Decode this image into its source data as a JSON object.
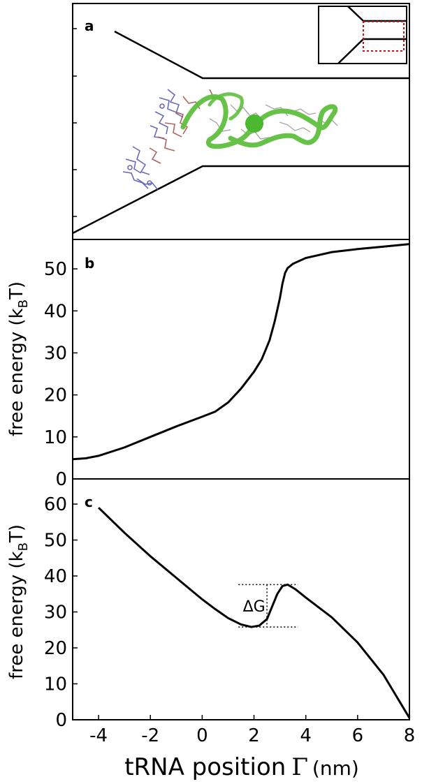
{
  "chart_data": [
    {
      "panel": "a",
      "type": "other",
      "title": "",
      "xlim": [
        -5,
        8
      ],
      "ylim": [
        0,
        7
      ]
    },
    {
      "panel": "b",
      "type": "line",
      "xlabel": "",
      "ylabel": "free energy (k_BT)",
      "ylabel_parts": {
        "pre": "free energy (k",
        "sub": "B",
        "post": "T)"
      },
      "xlim": [
        -5,
        8
      ],
      "ylim": [
        0,
        57
      ],
      "yticks": [
        0,
        10,
        20,
        30,
        40,
        50
      ],
      "series": [
        {
          "x": [
            -5,
            -4.5,
            -4,
            -3,
            -2,
            -1,
            0,
            0.5,
            1,
            1.5,
            2,
            2.3,
            2.6,
            2.8,
            3.0,
            3.1,
            3.2,
            3.3,
            3.5,
            4,
            5,
            6,
            7,
            8
          ],
          "y": [
            4.7,
            4.9,
            5.5,
            7.5,
            10,
            12.5,
            14.8,
            16,
            18.2,
            21.5,
            25.5,
            28.5,
            33,
            37.5,
            43,
            46.5,
            49,
            50.2,
            51.2,
            52.6,
            54,
            54.7,
            55.3,
            55.9
          ]
        }
      ]
    },
    {
      "panel": "c",
      "type": "line",
      "xlabel": "tRNA position",
      "xlabel_symbol": "Γ",
      "xlabel_unit": "(nm)",
      "ylabel": "free energy (k_BT)",
      "ylabel_parts": {
        "pre": "free energy (k",
        "sub": "B",
        "post": "T)"
      },
      "xlim": [
        -5,
        8
      ],
      "ylim": [
        0,
        67
      ],
      "xticks": [
        -4,
        -2,
        0,
        2,
        4,
        6,
        8
      ],
      "yticks": [
        0,
        10,
        20,
        30,
        40,
        50,
        60
      ],
      "series": [
        {
          "x": [
            -4,
            -3,
            -2,
            -1,
            0,
            0.5,
            1,
            1.5,
            1.9,
            2.2,
            2.5,
            2.7,
            2.9,
            3.1,
            3.3,
            3.6,
            4,
            5,
            6,
            7,
            7.5,
            8
          ],
          "y": [
            59,
            52,
            45.5,
            39.5,
            33.5,
            30.8,
            28.3,
            26.5,
            25.8,
            26.2,
            28,
            31.5,
            35,
            37.2,
            37.6,
            36.3,
            34,
            28.5,
            21.5,
            12.5,
            6.5,
            0.5
          ]
        }
      ],
      "annotation": {
        "label": "ΔG",
        "upper_y": 37.6,
        "lower_y": 25.8,
        "x_from": 1.4,
        "x_to": 3.7,
        "marker_x": 2.5
      }
    }
  ],
  "panels": {
    "a": "a",
    "b": "b",
    "c": "c"
  },
  "colors": {
    "line": "#000000",
    "rna_green": "#5fbf3e",
    "rna_blue": "#5a5ab4",
    "rna_red": "#a8544e",
    "inset_dotted": "#cc1111"
  }
}
